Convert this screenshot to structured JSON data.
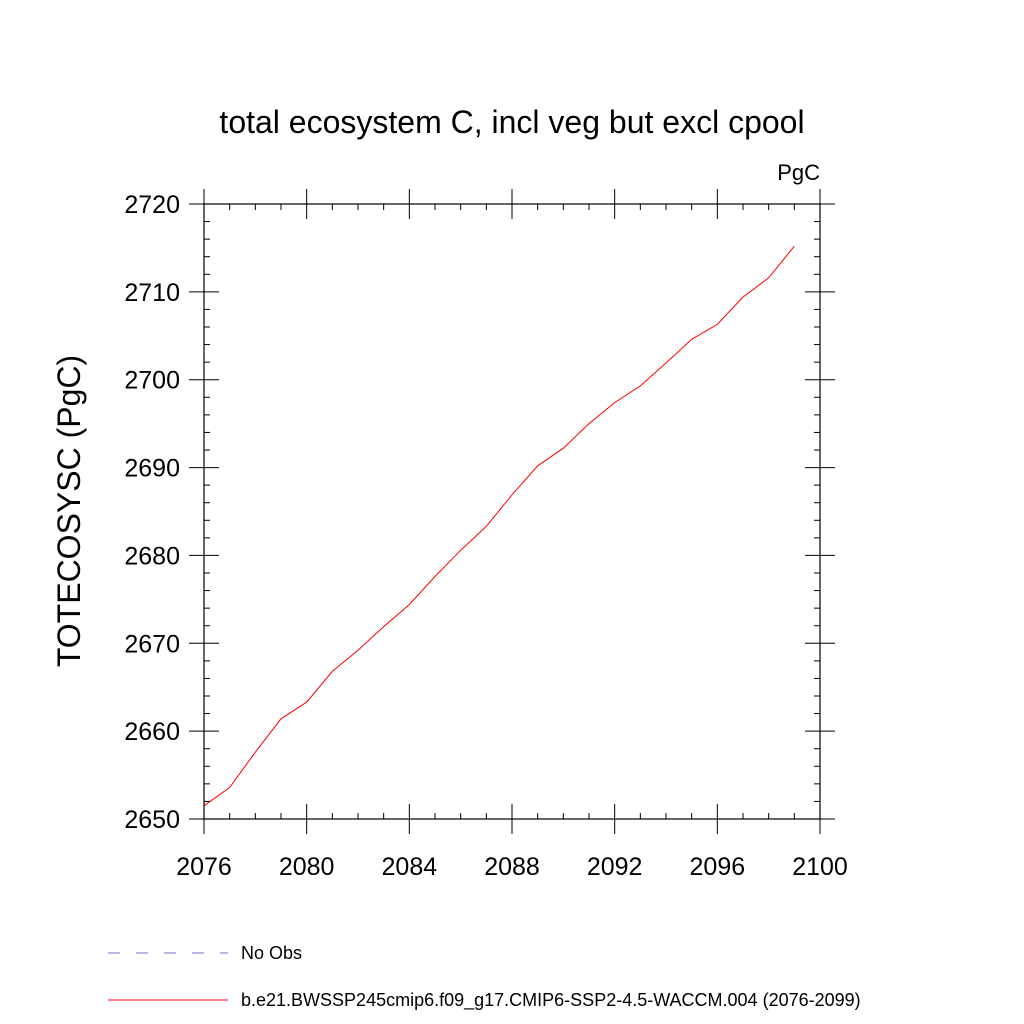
{
  "chart_data": {
    "type": "line",
    "title": "total ecosystem C, incl veg but excl cpool",
    "units": "PgC",
    "ylabel": "TOTECOSYSC  (PgC)",
    "xlabel": "",
    "xlim": [
      2076,
      2100
    ],
    "ylim": [
      2650,
      2720
    ],
    "xticks": [
      2076,
      2080,
      2084,
      2088,
      2092,
      2096,
      2100
    ],
    "yticks": [
      2650,
      2660,
      2670,
      2680,
      2690,
      2700,
      2710,
      2720
    ],
    "grid": false,
    "legend_position": "bottom",
    "colors": {
      "series": "#ff0000",
      "obs": "#7a70c8"
    },
    "series": [
      {
        "name": "b.e21.BWSSP245cmip6.f09_g17.CMIP6-SSP2-4.5-WACCM.004 (2076-2099)",
        "x": [
          2076,
          2077,
          2078,
          2079,
          2080,
          2081,
          2082,
          2083,
          2084,
          2085,
          2086,
          2087,
          2088,
          2089,
          2090,
          2091,
          2092,
          2093,
          2094,
          2095,
          2096,
          2097,
          2098,
          2099
        ],
        "values": [
          2651.5,
          2653.6,
          2657.6,
          2661.4,
          2663.3,
          2666.8,
          2669.2,
          2671.9,
          2674.4,
          2677.6,
          2680.6,
          2683.3,
          2686.9,
          2690.2,
          2692.2,
          2695.0,
          2697.4,
          2699.3,
          2701.9,
          2704.6,
          2706.3,
          2709.4,
          2711.6,
          2715.2
        ]
      }
    ],
    "legend": [
      {
        "label": "No Obs",
        "style": "dashed",
        "color": "#7a70c8"
      },
      {
        "label": "b.e21.BWSSP245cmip6.f09_g17.CMIP6-SSP2-4.5-WACCM.004 (2076-2099)",
        "style": "solid",
        "color": "#ff0000"
      }
    ]
  }
}
